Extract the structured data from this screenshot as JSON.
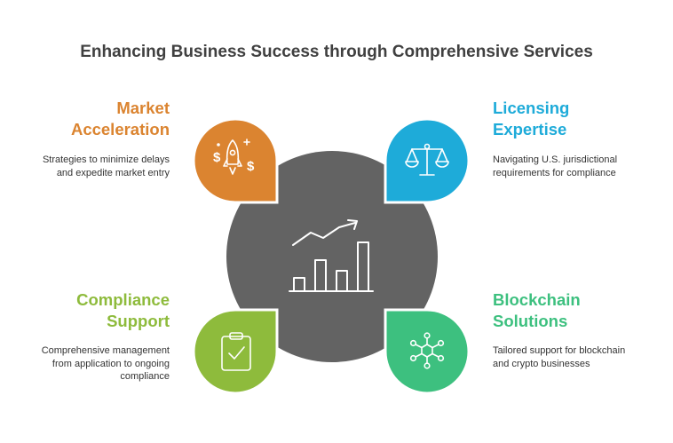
{
  "title": "Enhancing Business Success through Comprehensive Services",
  "colors": {
    "center": "#636363",
    "market": "#DB8430",
    "licensing": "#1EABD9",
    "compliance": "#8EBB3C",
    "blockchain": "#3DC07F"
  },
  "center": {
    "icon": "growth-chart-icon"
  },
  "quadrants": [
    {
      "title_line1": "Market",
      "title_line2": "Acceleration",
      "description_line1": "Strategies to minimize delays",
      "description_line2": "and expedite market entry",
      "icon": "rocket-dollar-icon"
    },
    {
      "title_line1": "Licensing",
      "title_line2": "Expertise",
      "description_line1": "Navigating U.S. jurisdictional",
      "description_line2": "requirements for compliance",
      "icon": "scales-icon"
    },
    {
      "title_line1": "Compliance",
      "title_line2": "Support",
      "description_line1": "Comprehensive management",
      "description_line2": "from application to ongoing",
      "description_line3": "compliance",
      "icon": "clipboard-check-icon"
    },
    {
      "title_line1": "Blockchain",
      "title_line2": "Solutions",
      "description_line1": "Tailored support for blockchain",
      "description_line2": "and crypto businesses",
      "icon": "network-nodes-icon"
    }
  ]
}
